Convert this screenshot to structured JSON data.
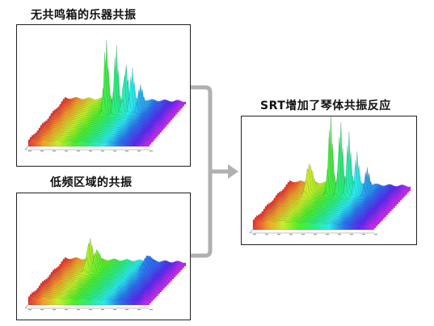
{
  "panels": {
    "top_left": {
      "title": "无共鸣箱的乐器共振"
    },
    "bottom_left": {
      "title": "低频区域的共振"
    },
    "right": {
      "title": "SRT增加了琴体共振反应"
    }
  },
  "colors": {
    "panel_border": "#222222",
    "connector": "#b0b0b0",
    "spectrum_start": "#e21a1a",
    "spectrum_mid": "#f2e21a",
    "spectrum_green": "#2aa63a",
    "spectrum_end": "#7a3aa0"
  }
}
